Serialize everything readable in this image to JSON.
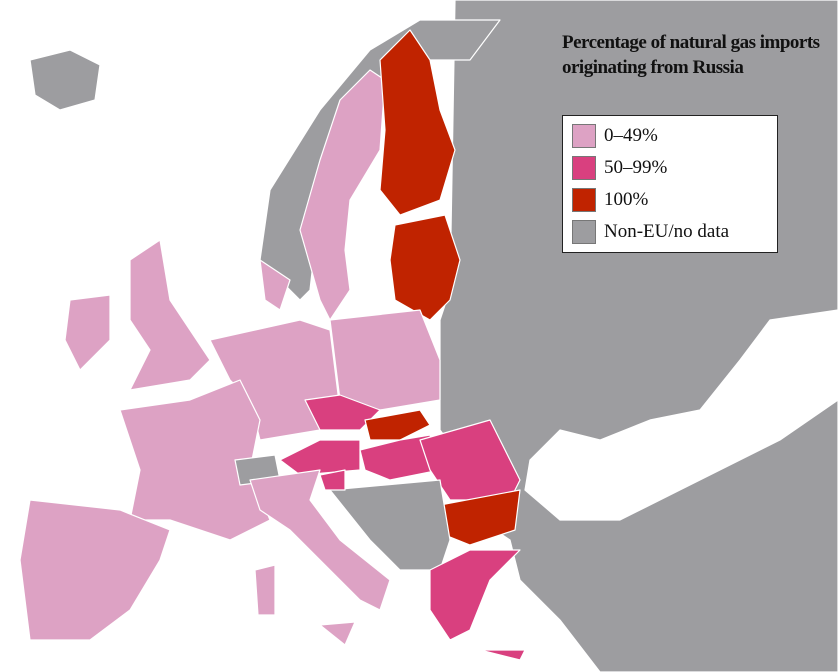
{
  "legend": {
    "title": "Percentage of natural gas imports originating from Russia",
    "items": [
      {
        "label": "0–49%",
        "color": "#dda2c4"
      },
      {
        "label": "50–99%",
        "color": "#d9407f"
      },
      {
        "label": "100%",
        "color": "#c02300"
      },
      {
        "label": "Non-EU/no data",
        "color": "#9d9da0"
      }
    ]
  }
}
